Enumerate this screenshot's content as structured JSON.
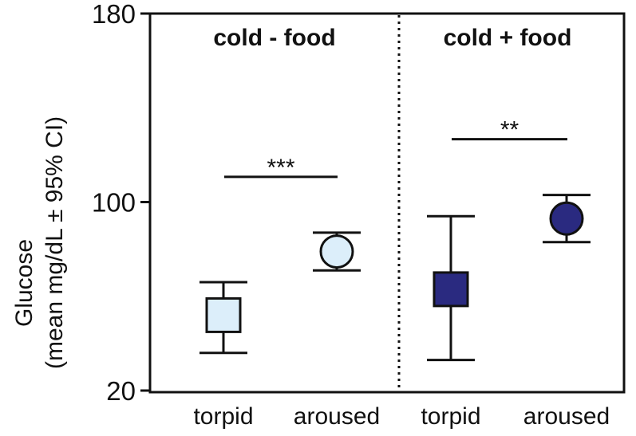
{
  "chart_data": {
    "type": "scatter",
    "ylabel_lines": [
      "Glucose",
      "(mean mg/dL ± 95% CI)"
    ],
    "ylim": [
      20,
      180
    ],
    "yticks": [
      20,
      100,
      180
    ],
    "panels": [
      {
        "title": "cold - food",
        "categories": [
          "torpid",
          "aroused"
        ],
        "points": [
          {
            "category": "torpid",
            "mean": 52,
            "ci_low": 36,
            "ci_high": 66,
            "marker": "square",
            "fill": "#dceefa"
          },
          {
            "category": "aroused",
            "mean": 79,
            "ci_low": 71,
            "ci_high": 87,
            "marker": "circle",
            "fill": "#dceefa"
          }
        ],
        "significance": "***"
      },
      {
        "title": "cold + food",
        "categories": [
          "torpid",
          "aroused"
        ],
        "points": [
          {
            "category": "torpid",
            "mean": 63,
            "ci_low": 33,
            "ci_high": 94,
            "marker": "square",
            "fill": "#2a2a80"
          },
          {
            "category": "aroused",
            "mean": 93,
            "ci_low": 83,
            "ci_high": 103,
            "marker": "circle",
            "fill": "#2a2a80"
          }
        ],
        "significance": "**"
      }
    ]
  }
}
